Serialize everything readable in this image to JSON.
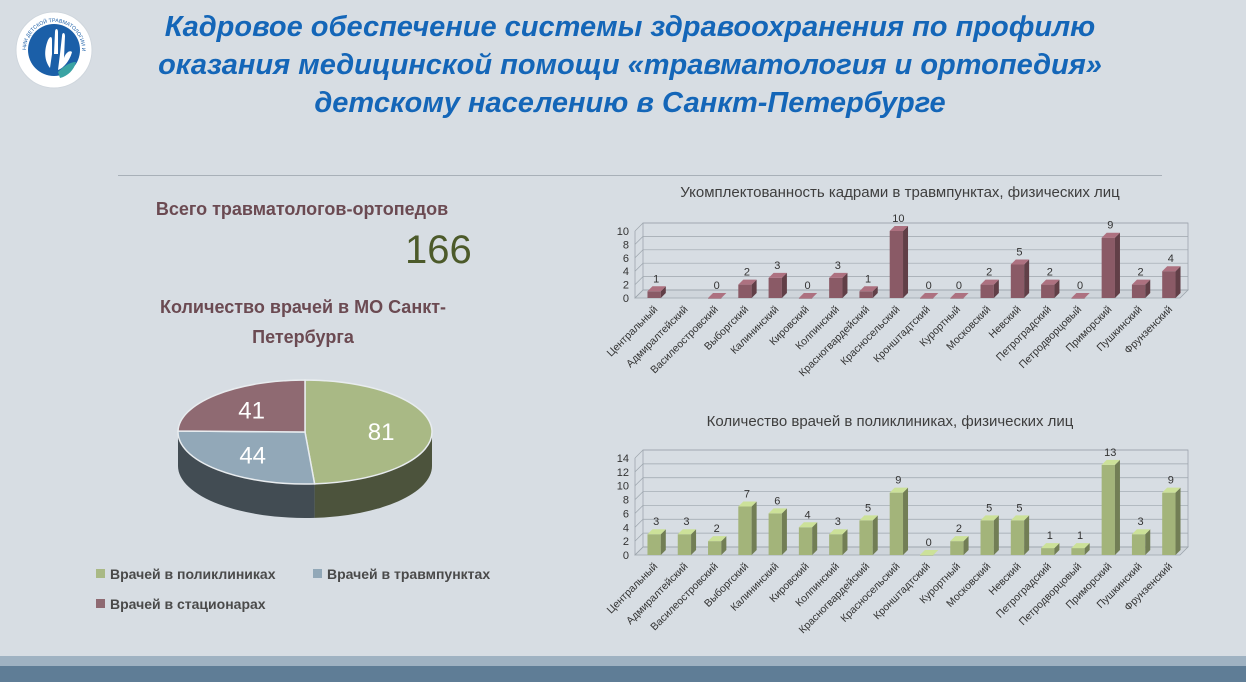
{
  "title": "Кадровое обеспечение системы здравоохранения по профилю оказания медицинской помощи «травматология и ортопедия» детскому населению в Санкт-Петербурге",
  "logo": {
    "ring_text": "НИИ ДЕТСКОЙ ТРАВМАТОЛОГИИ И ОРТОПЕДИИ им. Г.И. ТУРНЕРА",
    "primary_color": "#1b5fa8",
    "accent_color": "#3aa3a3"
  },
  "total": {
    "label": "Всего травматологов-ортопедов",
    "value": "166"
  },
  "pie_heading": "Количество врачей в МО Санкт-Петербурга",
  "chart_data": [
    {
      "type": "pie",
      "categories": [
        "Врачей в поликлиниках",
        "Врачей в травмпунктах",
        "Врачей в стационарах"
      ],
      "values": [
        81,
        44,
        41
      ],
      "colors": [
        "#a9b985",
        "#92a8b8",
        "#8f6a72"
      ],
      "legend_position": "bottom"
    },
    {
      "type": "bar",
      "title": "Укомплектованность кадрами в травмпунктах, физических лиц",
      "categories": [
        "Центральный",
        "Адмиралтейский",
        "Василеостровский",
        "Выборгский",
        "Калининский",
        "Кировский",
        "Колпинский",
        "Красногвардейский",
        "Красносельский",
        "Кронштадтский",
        "Курортный",
        "Московский",
        "Невский",
        "Петроградский",
        "Петродворцовый",
        "Приморский",
        "Пушкинский",
        "Фрунзенский"
      ],
      "values": [
        1,
        null,
        0,
        2,
        3,
        0,
        3,
        1,
        10,
        0,
        0,
        2,
        5,
        2,
        0,
        9,
        2,
        4
      ],
      "data_labels": [
        "1",
        "",
        "0",
        "2",
        "3",
        "0",
        "3",
        "1",
        "10",
        "0",
        "0",
        "2",
        "5",
        "2",
        "0",
        "9",
        "2",
        "4"
      ],
      "yticks": [
        "0",
        "2",
        "4",
        "6",
        "8",
        "10"
      ],
      "ylim": [
        0,
        10
      ],
      "color": "#8a5a66",
      "grid": true
    },
    {
      "type": "bar",
      "title": "Количество врачей в поликлиниках, физических лиц",
      "categories": [
        "Центральный",
        "Адмиралтейский",
        "Василеостровский",
        "Выборгский",
        "Калининский",
        "Кировский",
        "Колпинский",
        "Красногвардейский",
        "Красносельский",
        "Кронштадтский",
        "Курортный",
        "Московский",
        "Невский",
        "Петроградский",
        "Петродворцовый",
        "Приморский",
        "Пушкинский",
        "Фрунзенский"
      ],
      "values": [
        3,
        3,
        2,
        7,
        6,
        4,
        3,
        5,
        9,
        0,
        2,
        5,
        5,
        1,
        1,
        13,
        3,
        9
      ],
      "data_labels": [
        "3",
        "3",
        "2",
        "7",
        "6",
        "4",
        "3",
        "5",
        "9",
        "0",
        "2",
        "5",
        "5",
        "1",
        "1",
        "13",
        "3",
        "9"
      ],
      "yticks": [
        "0",
        "2",
        "4",
        "6",
        "8",
        "10",
        "12",
        "14"
      ],
      "ylim": [
        0,
        14
      ],
      "color": "#a3b47a",
      "grid": true
    }
  ]
}
